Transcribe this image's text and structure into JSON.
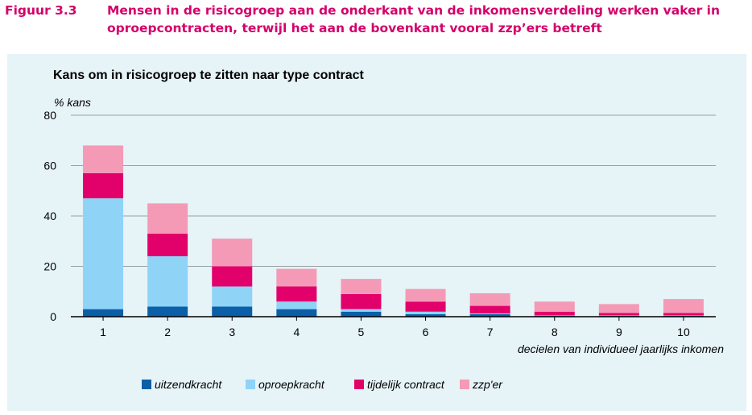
{
  "figure": {
    "number": "Figuur 3.3",
    "title": "Mensen in de risicogroep aan de onderkant van de inkomensverdeling werken vaker in oproepcontracten, terwijl het aan de bovenkant vooral zzp’ers betreft"
  },
  "colors": {
    "panel_bg": "#e6f3f7",
    "heading": "#d4006a",
    "uitzendkracht": "#0a5fa8",
    "oproepkracht": "#8fd3f7",
    "tijdelijk_contract": "#e2006a",
    "zzper": "#f49ab6"
  },
  "chart_data": {
    "type": "bar",
    "stacked": true,
    "title": "Kans om in risicogroep te zitten naar type contract",
    "ylabel": "% kans",
    "xlabel": "decielen van individueel jaarlijks inkomen",
    "categories": [
      "1",
      "2",
      "3",
      "4",
      "5",
      "6",
      "7",
      "8",
      "9",
      "10"
    ],
    "ylim": [
      0,
      80
    ],
    "yticks": [
      0,
      20,
      40,
      60,
      80
    ],
    "grid": true,
    "legend_position": "bottom",
    "series": [
      {
        "name": "uitzendkracht",
        "color": "#0a5fa8",
        "values": [
          3,
          4,
          4,
          3,
          2,
          1,
          1,
          0.3,
          0.3,
          0.3
        ]
      },
      {
        "name": "oproepkracht",
        "color": "#8fd3f7",
        "values": [
          44,
          20,
          8,
          3,
          1,
          1,
          0.3,
          0.2,
          0.2,
          0.2
        ]
      },
      {
        "name": "tijdelijk contract",
        "color": "#e2006a",
        "values": [
          10,
          9,
          8,
          6,
          6,
          4,
          3,
          1.5,
          1,
          1
        ]
      },
      {
        "name": "zzp'er",
        "color": "#f49ab6",
        "values": [
          11,
          12,
          11,
          7,
          6,
          5,
          5,
          4,
          3.5,
          5.5
        ]
      }
    ]
  }
}
